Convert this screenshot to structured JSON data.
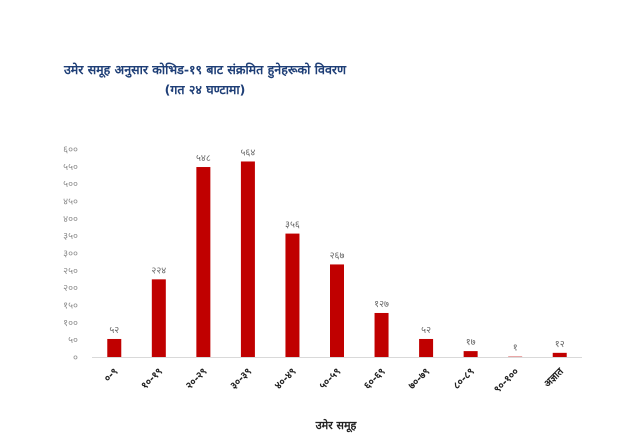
{
  "chart_data": {
    "type": "bar",
    "title": "उमेर समूह अनुसार कोभिड-१९ बाट संक्रमित हुनेहरूको विवरण",
    "subtitle": "(गत २४ घण्टामा)",
    "xlabel": "उमेर समूह",
    "ylabel": "",
    "categories": [
      "०-९",
      "१०-१९",
      "२०-२९",
      "३०-३९",
      "४०-४९",
      "५०-५९",
      "६०-६९",
      "७०-७९",
      "८०-८९",
      "९०-१००",
      "अज्ञात"
    ],
    "values": [
      52,
      224,
      548,
      564,
      356,
      267,
      127,
      52,
      17,
      1,
      12
    ],
    "data_labels": [
      "५२",
      "२२४",
      "५४८",
      "५६४",
      "३५६",
      "२६७",
      "१२७",
      "५२",
      "१७",
      "१",
      "१२"
    ],
    "y_ticks": [
      0,
      50,
      100,
      150,
      200,
      250,
      300,
      350,
      400,
      450,
      500,
      550,
      600
    ],
    "y_tick_labels": [
      "०",
      "५०",
      "१००",
      "१५०",
      "२००",
      "२५०",
      "३००",
      "३५०",
      "४००",
      "४५०",
      "५००",
      "५५०",
      "६००"
    ],
    "ylim": [
      0,
      600
    ],
    "grid": false,
    "legend": "none",
    "bar_color": "#c00000",
    "title_color": "#1f3f77"
  }
}
